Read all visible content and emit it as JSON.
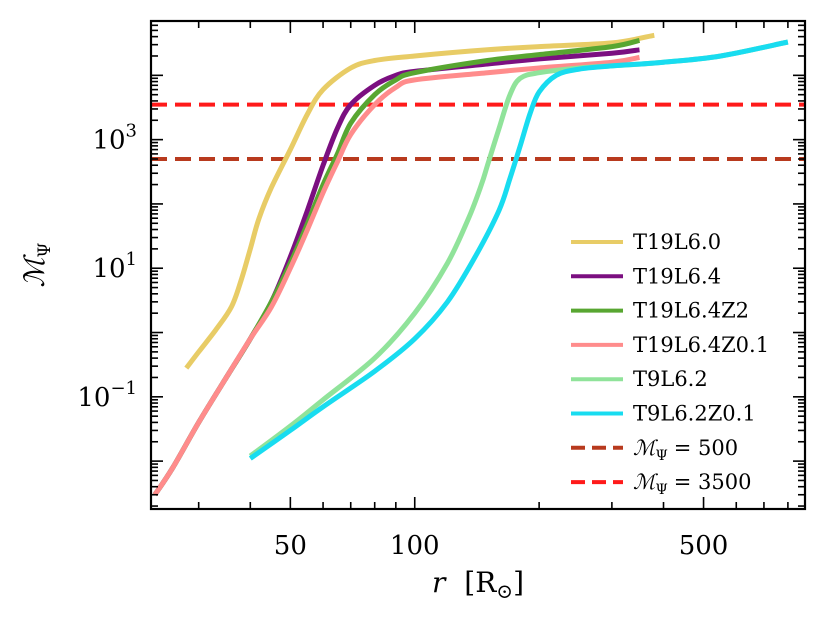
{
  "chart_data": {
    "type": "line",
    "title": "",
    "xlabel": "r [R⊙]",
    "ylabel": "MΨ",
    "xscale": "log",
    "yscale": "log",
    "xlim": [
      23,
      880
    ],
    "ylim": [
      0.0018,
      70000
    ],
    "x_ticks": [
      {
        "value": 50,
        "label": "50"
      },
      {
        "value": 100,
        "label": "100"
      },
      {
        "value": 500,
        "label": "500"
      }
    ],
    "y_ticks": [
      {
        "value": 0.1,
        "base": "10",
        "exp": "−1"
      },
      {
        "value": 10,
        "base": "10",
        "exp": "1"
      },
      {
        "value": 1000,
        "base": "10",
        "exp": "3"
      }
    ],
    "legend_position": "lower-right",
    "series": [
      {
        "name": "T19L6.0",
        "color": "#e8cc66",
        "x": [
          28,
          30,
          33,
          36,
          38,
          40,
          42,
          45,
          50,
          55,
          60,
          70,
          80,
          100,
          150,
          200,
          300,
          380
        ],
        "y": [
          0.28,
          0.5,
          1.1,
          2.5,
          6.5,
          20,
          60,
          180,
          700,
          2500,
          6000,
          13000,
          17000,
          20000,
          25000,
          28000,
          32000,
          42000
        ]
      },
      {
        "name": "T19L6.4",
        "color": "#7b0f80",
        "x": [
          23.5,
          26,
          30,
          35,
          40,
          45,
          50,
          55,
          60,
          65,
          70,
          80,
          90,
          100,
          150,
          200,
          300,
          350
        ],
        "y": [
          0.003,
          0.008,
          0.04,
          0.2,
          0.8,
          3,
          15,
          80,
          400,
          1500,
          3500,
          7000,
          10000,
          11500,
          15000,
          18000,
          22000,
          25000
        ]
      },
      {
        "name": "T19L6.4Z2",
        "color": "#58a631",
        "x": [
          23.5,
          26,
          30,
          35,
          40,
          45,
          50,
          55,
          60,
          65,
          70,
          80,
          90,
          100,
          150,
          200,
          300,
          350
        ],
        "y": [
          0.003,
          0.008,
          0.04,
          0.2,
          0.8,
          3,
          12,
          50,
          200,
          600,
          1800,
          5000,
          8500,
          11000,
          17000,
          21000,
          28000,
          35000
        ]
      },
      {
        "name": "T19L6.4Z0.1",
        "color": "#ff8c8c",
        "x": [
          23.5,
          26,
          30,
          35,
          40,
          45,
          50,
          55,
          60,
          65,
          70,
          80,
          90,
          100,
          150,
          200,
          300,
          350
        ],
        "y": [
          0.003,
          0.008,
          0.04,
          0.2,
          0.8,
          2.5,
          10,
          40,
          150,
          450,
          1200,
          3500,
          6500,
          8500,
          11000,
          13000,
          16000,
          19000
        ]
      },
      {
        "name": "T9L6.2",
        "color": "#90e39a",
        "x": [
          40,
          50,
          60,
          80,
          100,
          120,
          135,
          145,
          150,
          160,
          170,
          180,
          200,
          250,
          300,
          400,
          550,
          800
        ],
        "y": [
          0.012,
          0.035,
          0.09,
          0.4,
          2,
          12,
          60,
          200,
          400,
          1500,
          5000,
          9000,
          11000,
          13000,
          14000,
          16000,
          20000,
          33000
        ]
      },
      {
        "name": "T9L6.2Z0.1",
        "color": "#18dcf0",
        "x": [
          40,
          50,
          60,
          80,
          100,
          120,
          140,
          160,
          170,
          180,
          190,
          200,
          220,
          250,
          300,
          400,
          550,
          800
        ],
        "y": [
          0.011,
          0.03,
          0.07,
          0.25,
          0.8,
          3,
          15,
          80,
          250,
          800,
          2500,
          5500,
          10000,
          12500,
          14000,
          16000,
          20000,
          33000
        ]
      }
    ],
    "hlines": [
      {
        "name": "MΨ = 500",
        "legend_label": "= 500",
        "value": 500,
        "color": "#b83a1e",
        "style": "dashed"
      },
      {
        "name": "MΨ = 3500",
        "legend_label": "= 3500",
        "value": 3500,
        "color": "#ff1a1a",
        "style": "dashed"
      }
    ]
  }
}
